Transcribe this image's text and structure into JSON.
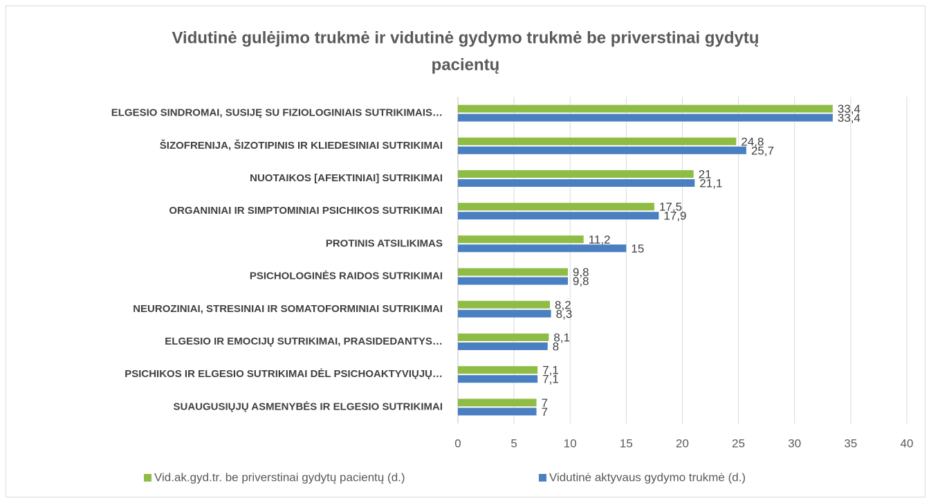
{
  "chart_data": {
    "type": "bar",
    "orientation": "horizontal",
    "title": [
      "Vidutinė gulėjimo trukmė ir vidutinė gydymo trukmė be priverstinai gydytų",
      "pacientų"
    ],
    "categories": [
      "ELGESIO SINDROMAI, SUSIJĘ SU FIZIOLOGINIAIS SUTRIKIMAIS…",
      "ŠIZOFRENIJA, ŠIZOTIPINIS IR KLIEDESINIAI SUTRIKIMAI",
      "NUOTAIKOS [AFEKTINIAI] SUTRIKIMAI",
      "ORGANINIAI IR SIMPTOMINIAI PSICHIKOS SUTRIKIMAI",
      "PROTINIS ATSILIKIMAS",
      "PSICHOLOGINĖS RAIDOS SUTRIKIMAI",
      "NEUROZINIAI, STRESINIAI IR SOMATOFORMINIAI SUTRIKIMAI",
      "ELGESIO IR EMOCIJŲ SUTRIKIMAI, PRASIDEDANTYS…",
      "PSICHIKOS IR ELGESIO SUTRIKIMAI DĖL PSICHOAKTYVIŲJŲ…",
      "SUAUGUSIŲJŲ ASMENYBĖS IR ELGESIO SUTRIKIMAI"
    ],
    "series": [
      {
        "name": "Vid.ak.gyd.tr. be priverstinai gydytų pacientų (d.)",
        "color": "#8fbc45",
        "values": [
          33.4,
          24.8,
          21,
          17.5,
          11.2,
          9.8,
          8.2,
          8.1,
          7.1,
          7
        ],
        "value_labels": [
          "33,4",
          "24,8",
          "21",
          "17,5",
          "11,2",
          "9,8",
          "8,2",
          "8,1",
          "7,1",
          "7"
        ]
      },
      {
        "name": "Vidutinė aktyvaus gydymo trukmė (d.)",
        "color": "#4a7fc1",
        "values": [
          33.4,
          25.7,
          21.1,
          17.9,
          15,
          9.8,
          8.3,
          8,
          7.1,
          7
        ],
        "value_labels": [
          "33,4",
          "25,7",
          "21,1",
          "17,9",
          "15",
          "9,8",
          "8,3",
          "8",
          "7,1",
          "7"
        ]
      }
    ],
    "xlim": [
      0,
      40
    ],
    "xticks": [
      0,
      5,
      10,
      15,
      20,
      25,
      30,
      35,
      40
    ],
    "grid": true,
    "legend": "bottom"
  }
}
